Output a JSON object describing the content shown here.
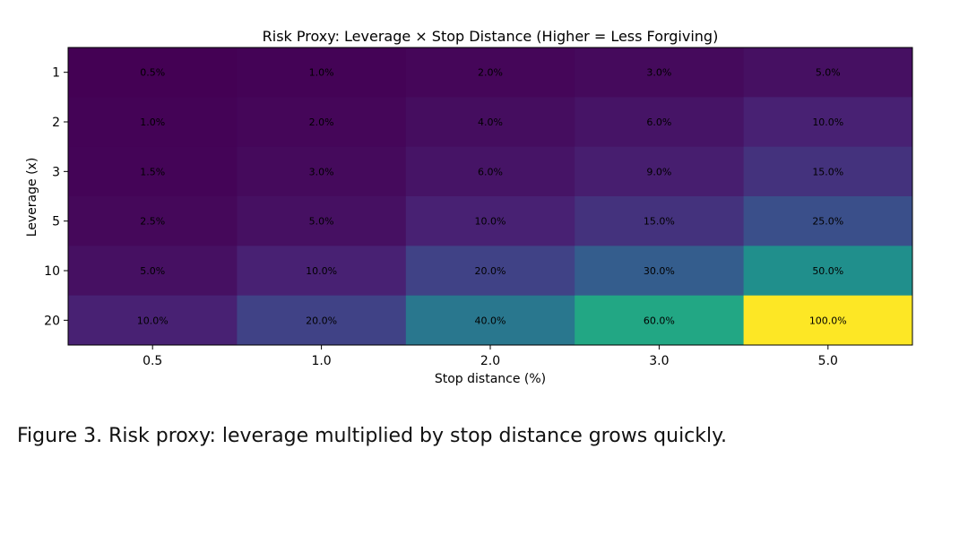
{
  "chart_data": {
    "type": "heatmap",
    "title": "Risk Proxy: Leverage × Stop Distance (Higher = Less Forgiving)",
    "xlabel": "Stop distance (%)",
    "ylabel": "Leverage (x)",
    "x_categories": [
      "0.5",
      "1.0",
      "2.0",
      "3.0",
      "5.0"
    ],
    "y_categories": [
      "1",
      "2",
      "3",
      "5",
      "10",
      "20"
    ],
    "values": [
      [
        0.5,
        1.0,
        2.0,
        3.0,
        5.0
      ],
      [
        1.0,
        2.0,
        4.0,
        6.0,
        10.0
      ],
      [
        1.5,
        3.0,
        6.0,
        9.0,
        15.0
      ],
      [
        2.5,
        5.0,
        10.0,
        15.0,
        25.0
      ],
      [
        5.0,
        10.0,
        20.0,
        30.0,
        50.0
      ],
      [
        10.0,
        20.0,
        40.0,
        60.0,
        100.0
      ]
    ],
    "cell_labels": [
      [
        "0.5%",
        "1.0%",
        "2.0%",
        "3.0%",
        "5.0%"
      ],
      [
        "1.0%",
        "2.0%",
        "4.0%",
        "6.0%",
        "10.0%"
      ],
      [
        "1.5%",
        "3.0%",
        "6.0%",
        "9.0%",
        "15.0%"
      ],
      [
        "2.5%",
        "5.0%",
        "10.0%",
        "15.0%",
        "25.0%"
      ],
      [
        "5.0%",
        "10.0%",
        "20.0%",
        "30.0%",
        "50.0%"
      ],
      [
        "10.0%",
        "20.0%",
        "40.0%",
        "60.0%",
        "100.0%"
      ]
    ],
    "value_range": [
      0.5,
      100.0
    ],
    "colormap": "viridis",
    "grid": false
  },
  "caption": "Figure 3. Risk proxy: leverage multiplied by stop distance grows quickly."
}
